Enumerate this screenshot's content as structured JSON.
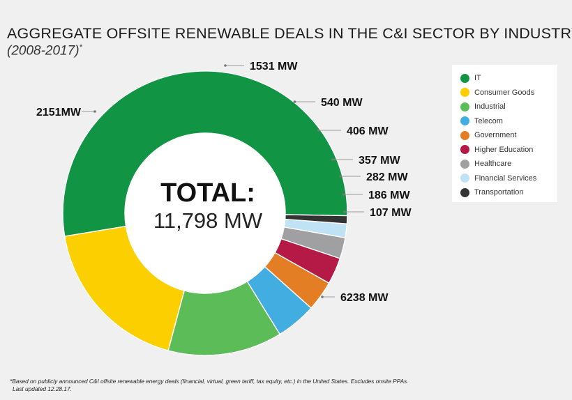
{
  "title": "AGGREGATE OFFSITE RENEWABLE DEALS IN THE C&I SECTOR BY INDUSTRY",
  "subtitle": "(2008-2017)",
  "subtitle_mark": "*",
  "center_label": "TOTAL:",
  "center_value": "11,798 MW",
  "footnote_line1": "*Based on publicly announced C&I offsite renewable energy deals (financial, virtual, green tariff, tax equity, etc.) in the United States. Excludes onsite PPAs.",
  "footnote_line2": "Last updated 12.28.17.",
  "chart_data": {
    "type": "pie",
    "variant": "donut",
    "title": "AGGREGATE OFFSITE RENEWABLE DEALS IN THE C&I SECTOR BY INDUSTRY",
    "legend_position": "right",
    "slices": [
      {
        "name": "IT",
        "value": 6238,
        "label": "6238 MW",
        "color": "#119544"
      },
      {
        "name": "Consumer Goods",
        "value": 2151,
        "label": "2151MW",
        "color": "#fcd000"
      },
      {
        "name": "Industrial",
        "value": 1531,
        "label": "1531 MW",
        "color": "#5bbc58"
      },
      {
        "name": "Telecom",
        "value": 540,
        "label": "540 MW",
        "color": "#41ade0"
      },
      {
        "name": "Government",
        "value": 406,
        "label": "406 MW",
        "color": "#e47e24"
      },
      {
        "name": "Higher Education",
        "value": 357,
        "label": "357 MW",
        "color": "#b51945"
      },
      {
        "name": "Healthcare",
        "value": 282,
        "label": "282 MW",
        "color": "#a0a0a3"
      },
      {
        "name": "Financial Services",
        "value": 186,
        "label": "186 MW",
        "color": "#bfe3f5"
      },
      {
        "name": "Transportation",
        "value": 107,
        "label": "107 MW",
        "color": "#333333"
      }
    ]
  }
}
